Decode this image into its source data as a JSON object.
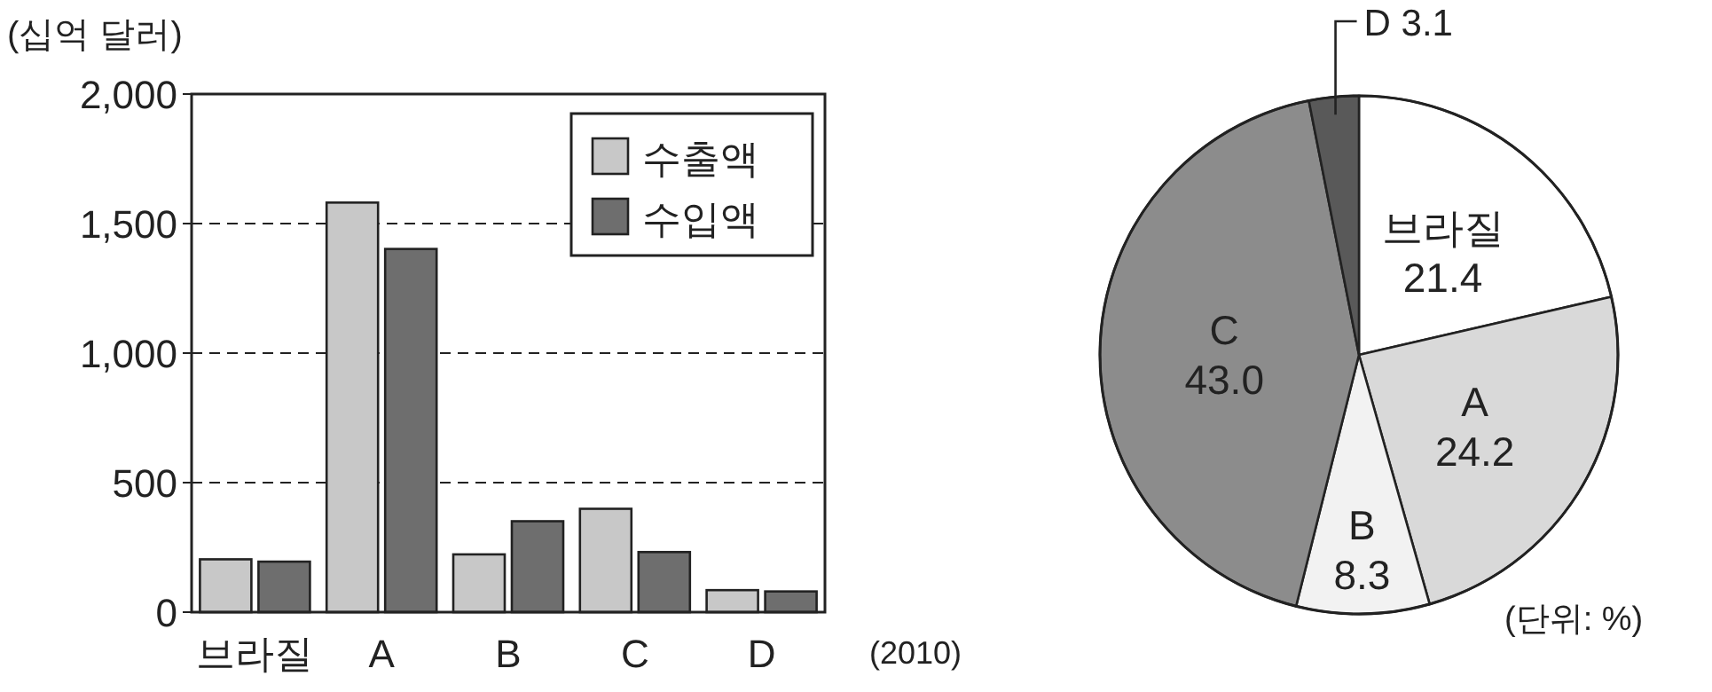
{
  "chart_data": [
    {
      "type": "bar",
      "ylabel": "(십억 달러)",
      "categories": [
        "브라질",
        "A",
        "B",
        "C",
        "D"
      ],
      "series": [
        {
          "name": "수출액",
          "color": "#c8c8c8",
          "values": [
            204,
            1581,
            223,
            399,
            85
          ]
        },
        {
          "name": "수입액",
          "color": "#6e6e6e",
          "values": [
            195,
            1402,
            351,
            232,
            80
          ]
        }
      ],
      "ylim": [
        0,
        2000
      ],
      "yticks": [
        {
          "value": 0,
          "label": "0"
        },
        {
          "value": 500,
          "label": "500"
        },
        {
          "value": 1000,
          "label": "1,000"
        },
        {
          "value": 1500,
          "label": "1,500"
        },
        {
          "value": 2000,
          "label": "2,000"
        }
      ],
      "grid": "y",
      "legend": "top right",
      "annotations": [
        "(2010)"
      ]
    },
    {
      "type": "pie",
      "categories": [
        "브라질",
        "A",
        "B",
        "C",
        "D"
      ],
      "values": [
        21.4,
        24.2,
        8.3,
        43.0,
        3.1
      ],
      "colors": [
        "#ffffff",
        "#d9d9d9",
        "#f2f2f2",
        "#8c8c8c",
        "#595959"
      ],
      "value_labels": [
        "21.4",
        "24.2",
        "8.3",
        "43.0",
        "3.1"
      ],
      "annotations": [
        "(단위: %)"
      ]
    }
  ]
}
